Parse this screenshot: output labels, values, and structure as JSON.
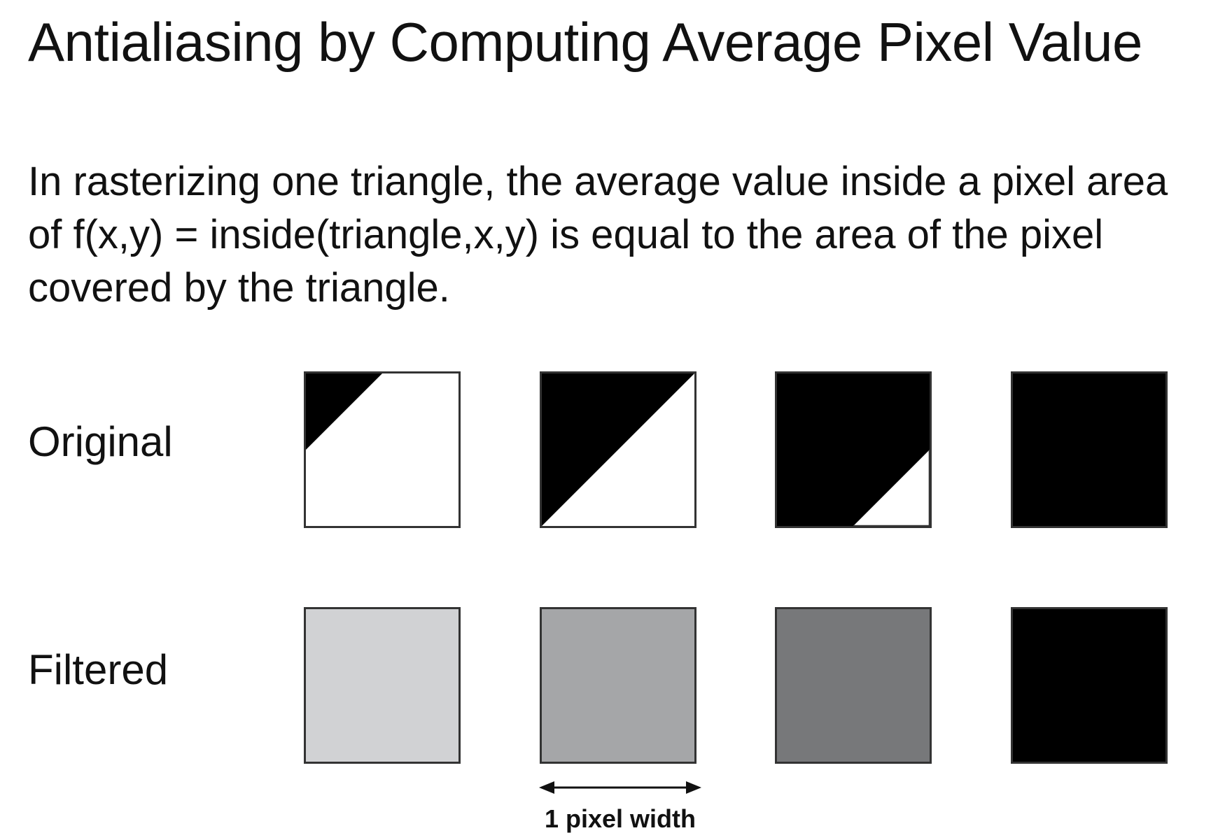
{
  "title": "Antialiasing by Computing Average Pixel Value",
  "body": "In rasterizing one triangle, the average value inside a pixel area of f(x,y) = inside(triangle,x,y) is equal to the area of the pixel covered by the triangle.",
  "rows": {
    "original_label": "Original",
    "filtered_label": "Filtered"
  },
  "original_pixels": [
    {
      "coverage": "small-corner"
    },
    {
      "coverage": "half"
    },
    {
      "coverage": "most"
    },
    {
      "coverage": "full"
    }
  ],
  "filtered_pixels": [
    {
      "fill": "#d1d2d4"
    },
    {
      "fill": "#a5a6a8"
    },
    {
      "fill": "#77787a"
    },
    {
      "fill": "#000000"
    }
  ],
  "measure": {
    "label": "1 pixel width"
  }
}
